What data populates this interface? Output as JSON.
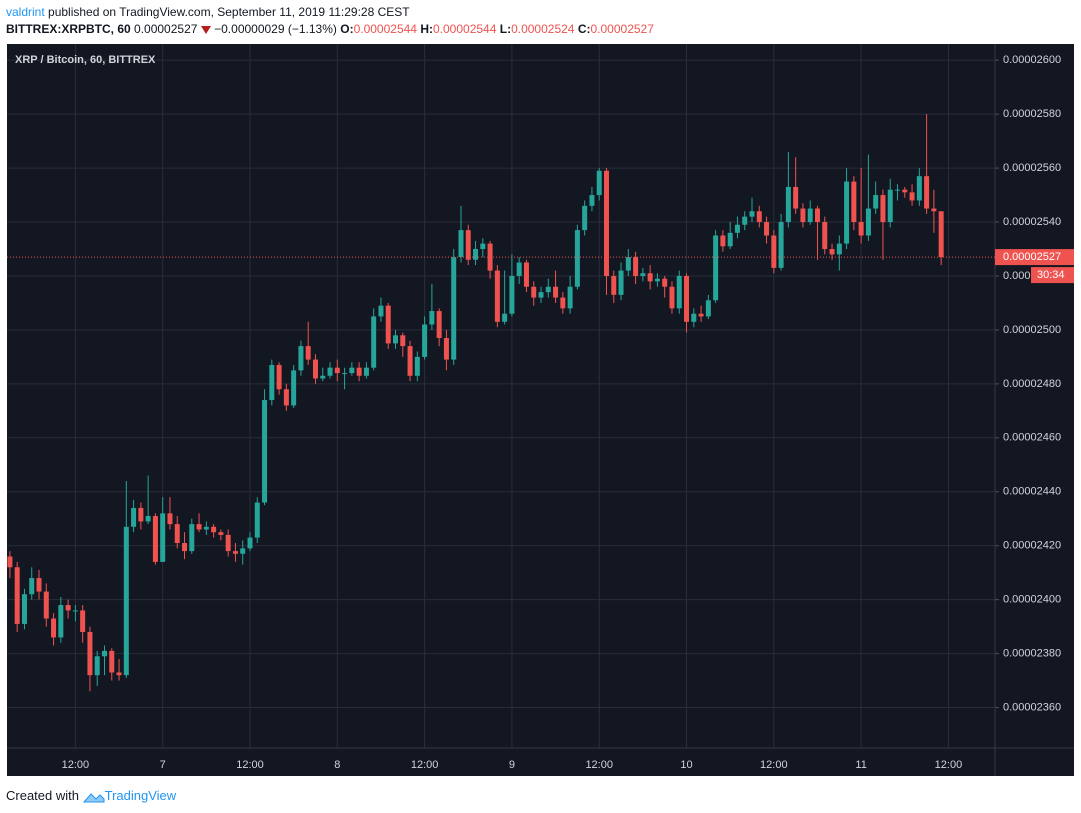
{
  "header": {
    "author": "valdrint",
    "published": "published on TradingView.com, September 11, 2019 11:29:28 CEST",
    "symbol": "BITTREX:XRPBTC, 60",
    "last": "0.00002527",
    "change": "−0.00000029 (−1.13%)",
    "ohlc": [
      {
        "label": "O:",
        "value": "0.00002544"
      },
      {
        "label": "H:",
        "value": "0.00002544"
      },
      {
        "label": "L:",
        "value": "0.00002524"
      },
      {
        "label": "C:",
        "value": "0.00002527"
      }
    ]
  },
  "footer": {
    "created": "Created with",
    "brand": "TradingView"
  },
  "chart_data": {
    "type": "candlestick",
    "title": "XRP / Bitcoin, 60, BITTREX",
    "countdown": "30:34",
    "up_color": "#26a69a",
    "down_color": "#ef5350",
    "grid": true,
    "ylim": [
      2.345e-05,
      2.606e-05
    ],
    "yticks": [
      {
        "value": 2.36e-05,
        "label": "0.00002360"
      },
      {
        "value": 2.38e-05,
        "label": "0.00002380"
      },
      {
        "value": 2.4e-05,
        "label": "0.00002400"
      },
      {
        "value": 2.42e-05,
        "label": "0.00002420"
      },
      {
        "value": 2.44e-05,
        "label": "0.00002440"
      },
      {
        "value": 2.46e-05,
        "label": "0.00002460"
      },
      {
        "value": 2.48e-05,
        "label": "0.00002480"
      },
      {
        "value": 2.5e-05,
        "label": "0.00002500"
      },
      {
        "value": 2.52e-05,
        "label": "0.00002520"
      },
      {
        "value": 2.54e-05,
        "label": "0.00002540"
      },
      {
        "value": 2.56e-05,
        "label": "0.00002560"
      },
      {
        "value": 2.58e-05,
        "label": "0.00002580"
      },
      {
        "value": 2.6e-05,
        "label": "0.00002600"
      }
    ],
    "categories": [
      null,
      null,
      null,
      null,
      null,
      null,
      null,
      null,
      null,
      "12:00",
      null,
      null,
      null,
      null,
      null,
      null,
      null,
      null,
      null,
      null,
      null,
      "7",
      null,
      null,
      null,
      null,
      null,
      null,
      null,
      null,
      null,
      null,
      null,
      "12:00",
      null,
      null,
      null,
      null,
      null,
      null,
      null,
      null,
      null,
      null,
      null,
      "8",
      null,
      null,
      null,
      null,
      null,
      null,
      null,
      null,
      null,
      null,
      null,
      "12:00",
      null,
      null,
      null,
      null,
      null,
      null,
      null,
      null,
      null,
      null,
      null,
      "9",
      null,
      null,
      null,
      null,
      null,
      null,
      null,
      null,
      null,
      null,
      null,
      "12:00",
      null,
      null,
      null,
      null,
      null,
      null,
      null,
      null,
      null,
      null,
      null,
      "10",
      null,
      null,
      null,
      null,
      null,
      null,
      null,
      null,
      null,
      null,
      null,
      "12:00",
      null,
      null,
      null,
      null,
      null,
      null,
      null,
      null,
      null,
      null,
      null,
      "11",
      null,
      null,
      null,
      null,
      null,
      null,
      null,
      null,
      null,
      null,
      null,
      "12:00",
      null,
      null,
      null,
      null,
      null
    ],
    "open": [
      2.416e-05,
      2.412e-05,
      2.391e-05,
      2.402e-05,
      2.408e-05,
      2.403e-05,
      2.393e-05,
      2.386e-05,
      2.398e-05,
      2.396e-05,
      2.396e-05,
      2.388e-05,
      2.372e-05,
      2.379e-05,
      2.381e-05,
      2.373e-05,
      2.372e-05,
      2.427e-05,
      2.434e-05,
      2.429e-05,
      2.431e-05,
      2.414e-05,
      2.432e-05,
      2.428e-05,
      2.421e-05,
      2.418e-05,
      2.428e-05,
      2.426e-05,
      2.427e-05,
      2.425e-05,
      2.424e-05,
      2.418e-05,
      2.417e-05,
      2.419e-05,
      2.423e-05,
      2.436e-05,
      2.474e-05,
      2.487e-05,
      2.478e-05,
      2.472e-05,
      2.485e-05,
      2.494e-05,
      2.489e-05,
      2.482e-05,
      2.483e-05,
      2.486e-05,
      2.484e-05,
      2.484e-05,
      2.486e-05,
      2.483e-05,
      2.486e-05,
      2.505e-05,
      2.509e-05,
      2.495e-05,
      2.498e-05,
      2.494e-05,
      2.483e-05,
      2.49e-05,
      2.502e-05,
      2.507e-05,
      2.497e-05,
      2.489e-05,
      2.527e-05,
      2.537e-05,
      2.526e-05,
      2.53e-05,
      2.532e-05,
      2.522e-05,
      2.503e-05,
      2.506e-05,
      2.52e-05,
      2.525e-05,
      2.516e-05,
      2.512e-05,
      2.514e-05,
      2.516e-05,
      2.512e-05,
      2.508e-05,
      2.516e-05,
      2.537e-05,
      2.546e-05,
      2.55e-05,
      2.559e-05,
      2.52e-05,
      2.513e-05,
      2.522e-05,
      2.527e-05,
      2.52e-05,
      2.521e-05,
      2.518e-05,
      2.519e-05,
      2.516e-05,
      2.508e-05,
      2.52e-05,
      2.503e-05,
      2.506e-05,
      2.505e-05,
      2.511e-05,
      2.535e-05,
      2.531e-05,
      2.536e-05,
      2.539e-05,
      2.542e-05,
      2.544e-05,
      2.54e-05,
      2.535e-05,
      2.523e-05,
      2.54e-05,
      2.553e-05,
      2.545e-05,
      2.54e-05,
      2.545e-05,
      2.54e-05,
      2.53e-05,
      2.528e-05,
      2.532e-05,
      2.555e-05,
      2.54e-05,
      2.535e-05,
      2.545e-05,
      2.55e-05,
      2.54e-05,
      2.552e-05,
      2.552e-05,
      2.551e-05,
      2.548e-05,
      2.557e-05,
      2.545e-05,
      2.544e-05,
      null,
      null,
      null,
      null,
      null,
      null
    ],
    "high": [
      2.418e-05,
      2.414e-05,
      2.404e-05,
      2.412e-05,
      2.411e-05,
      2.406e-05,
      2.395e-05,
      2.401e-05,
      2.4e-05,
      2.398e-05,
      2.398e-05,
      2.39e-05,
      2.381e-05,
      2.383e-05,
      2.382e-05,
      2.378e-05,
      2.444e-05,
      2.437e-05,
      2.436e-05,
      2.446e-05,
      2.432e-05,
      2.438e-05,
      2.438e-05,
      2.431e-05,
      2.425e-05,
      2.43e-05,
      2.432e-05,
      2.429e-05,
      2.428e-05,
      2.426e-05,
      2.426e-05,
      2.421e-05,
      2.422e-05,
      2.425e-05,
      2.438e-05,
      2.478e-05,
      2.489e-05,
      2.488e-05,
      2.48e-05,
      2.487e-05,
      2.496e-05,
      2.503e-05,
      2.491e-05,
      2.486e-05,
      2.488e-05,
      2.489e-05,
      2.486e-05,
      2.488e-05,
      2.488e-05,
      2.488e-05,
      2.508e-05,
      2.512e-05,
      2.51e-05,
      2.5e-05,
      2.499e-05,
      2.496e-05,
      2.492e-05,
      2.505e-05,
      2.517e-05,
      2.508e-05,
      2.5e-05,
      2.53e-05,
      2.546e-05,
      2.539e-05,
      2.533e-05,
      2.534e-05,
      2.533e-05,
      2.524e-05,
      2.522e-05,
      2.528e-05,
      2.527e-05,
      2.526e-05,
      2.518e-05,
      2.516e-05,
      2.519e-05,
      2.522e-05,
      2.514e-05,
      2.52e-05,
      2.539e-05,
      2.548e-05,
      2.553e-05,
      2.56e-05,
      2.56e-05,
      2.522e-05,
      2.525e-05,
      2.53e-05,
      2.529e-05,
      2.523e-05,
      2.524e-05,
      2.521e-05,
      2.52e-05,
      2.518e-05,
      2.522e-05,
      2.521e-05,
      2.508e-05,
      2.509e-05,
      2.513e-05,
      2.537e-05,
      2.537e-05,
      2.54e-05,
      2.542e-05,
      2.544e-05,
      2.549e-05,
      2.546e-05,
      2.542e-05,
      2.537e-05,
      2.543e-05,
      2.566e-05,
      2.564e-05,
      2.547e-05,
      2.548e-05,
      2.546e-05,
      2.542e-05,
      2.532e-05,
      2.535e-05,
      2.56e-05,
      2.557e-05,
      2.56e-05,
      2.565e-05,
      2.555e-05,
      2.552e-05,
      2.556e-05,
      2.554e-05,
      2.553e-05,
      2.554e-05,
      2.56e-05,
      2.58e-05,
      2.552e-05,
      2.544e-05,
      null,
      null,
      null,
      null,
      null,
      null
    ],
    "low": [
      2.408e-05,
      2.388e-05,
      2.389e-05,
      2.4e-05,
      2.4e-05,
      2.39e-05,
      2.383e-05,
      2.384e-05,
      2.393e-05,
      2.392e-05,
      2.384e-05,
      2.366e-05,
      2.368e-05,
      2.372e-05,
      2.37e-05,
      2.37e-05,
      2.371e-05,
      2.425e-05,
      2.426e-05,
      2.428e-05,
      2.413e-05,
      2.414e-05,
      2.426e-05,
      2.419e-05,
      2.415e-05,
      2.417e-05,
      2.425e-05,
      2.424e-05,
      2.423e-05,
      2.422e-05,
      2.416e-05,
      2.414e-05,
      2.413e-05,
      2.418e-05,
      2.421e-05,
      2.435e-05,
      2.472e-05,
      2.476e-05,
      2.47e-05,
      2.471e-05,
      2.483e-05,
      2.487e-05,
      2.48e-05,
      2.481e-05,
      2.482e-05,
      2.481e-05,
      2.478e-05,
      2.483e-05,
      2.481e-05,
      2.482e-05,
      2.485e-05,
      2.503e-05,
      2.493e-05,
      2.493e-05,
      2.49e-05,
      2.481e-05,
      2.481e-05,
      2.489e-05,
      2.5e-05,
      2.494e-05,
      2.485e-05,
      2.487e-05,
      2.525e-05,
      2.524e-05,
      2.524e-05,
      2.527e-05,
      2.519e-05,
      2.501e-05,
      2.502e-05,
      2.505e-05,
      2.517e-05,
      2.514e-05,
      2.509e-05,
      2.51e-05,
      2.512e-05,
      2.51e-05,
      2.506e-05,
      2.506e-05,
      2.515e-05,
      2.535e-05,
      2.544e-05,
      2.548e-05,
      2.513e-05,
      2.51e-05,
      2.511e-05,
      2.52e-05,
      2.517e-05,
      2.518e-05,
      2.515e-05,
      2.516e-05,
      2.512e-05,
      2.506e-05,
      2.506e-05,
      2.499e-05,
      2.501e-05,
      2.503e-05,
      2.504e-05,
      2.51e-05,
      2.529e-05,
      2.53e-05,
      2.534e-05,
      2.537e-05,
      2.54e-05,
      2.538e-05,
      2.532e-05,
      2.521e-05,
      2.522e-05,
      2.538e-05,
      2.543e-05,
      2.538e-05,
      2.539e-05,
      2.526e-05,
      2.528e-05,
      2.526e-05,
      2.522e-05,
      2.53e-05,
      2.537e-05,
      2.532e-05,
      2.533e-05,
      2.543e-05,
      2.526e-05,
      2.538e-05,
      2.548e-05,
      2.549e-05,
      2.546e-05,
      2.546e-05,
      2.543e-05,
      2.536e-05,
      2.524e-05,
      null,
      null,
      null,
      null,
      null,
      null
    ],
    "close": [
      2.412e-05,
      2.391e-05,
      2.402e-05,
      2.408e-05,
      2.403e-05,
      2.393e-05,
      2.386e-05,
      2.398e-05,
      2.396e-05,
      2.396e-05,
      2.388e-05,
      2.372e-05,
      2.379e-05,
      2.381e-05,
      2.373e-05,
      2.372e-05,
      2.427e-05,
      2.434e-05,
      2.429e-05,
      2.431e-05,
      2.414e-05,
      2.432e-05,
      2.428e-05,
      2.421e-05,
      2.418e-05,
      2.428e-05,
      2.426e-05,
      2.427e-05,
      2.425e-05,
      2.424e-05,
      2.418e-05,
      2.417e-05,
      2.419e-05,
      2.423e-05,
      2.436e-05,
      2.474e-05,
      2.487e-05,
      2.478e-05,
      2.472e-05,
      2.485e-05,
      2.494e-05,
      2.489e-05,
      2.482e-05,
      2.483e-05,
      2.486e-05,
      2.484e-05,
      2.484e-05,
      2.486e-05,
      2.483e-05,
      2.486e-05,
      2.505e-05,
      2.509e-05,
      2.495e-05,
      2.498e-05,
      2.494e-05,
      2.483e-05,
      2.49e-05,
      2.502e-05,
      2.507e-05,
      2.497e-05,
      2.489e-05,
      2.527e-05,
      2.537e-05,
      2.526e-05,
      2.53e-05,
      2.532e-05,
      2.522e-05,
      2.503e-05,
      2.506e-05,
      2.52e-05,
      2.525e-05,
      2.516e-05,
      2.512e-05,
      2.514e-05,
      2.516e-05,
      2.512e-05,
      2.508e-05,
      2.516e-05,
      2.537e-05,
      2.546e-05,
      2.55e-05,
      2.559e-05,
      2.52e-05,
      2.513e-05,
      2.522e-05,
      2.527e-05,
      2.52e-05,
      2.521e-05,
      2.518e-05,
      2.519e-05,
      2.516e-05,
      2.508e-05,
      2.52e-05,
      2.503e-05,
      2.506e-05,
      2.505e-05,
      2.511e-05,
      2.535e-05,
      2.531e-05,
      2.536e-05,
      2.539e-05,
      2.542e-05,
      2.544e-05,
      2.54e-05,
      2.535e-05,
      2.523e-05,
      2.54e-05,
      2.553e-05,
      2.545e-05,
      2.54e-05,
      2.545e-05,
      2.54e-05,
      2.53e-05,
      2.528e-05,
      2.532e-05,
      2.555e-05,
      2.54e-05,
      2.535e-05,
      2.545e-05,
      2.55e-05,
      2.54e-05,
      2.552e-05,
      2.552e-05,
      2.551e-05,
      2.548e-05,
      2.557e-05,
      2.545e-05,
      2.544e-05,
      2.527e-05,
      null,
      null,
      null,
      null,
      null,
      null
    ]
  }
}
